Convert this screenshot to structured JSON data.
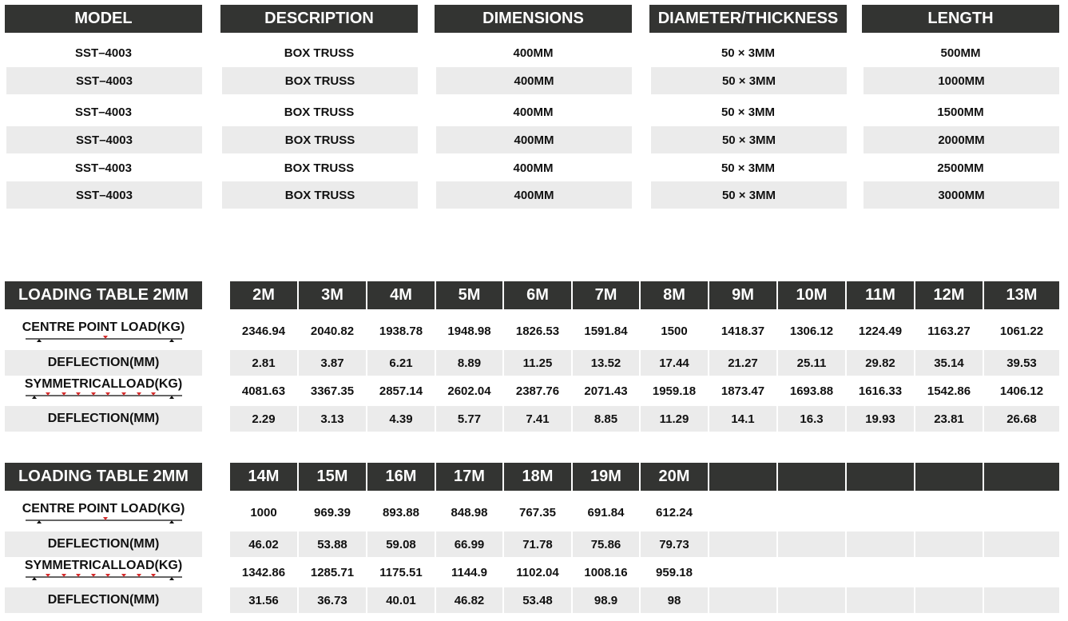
{
  "spec_table": {
    "headers": [
      "MODEL",
      "DESCRIPTION",
      "DIMENSIONS",
      "DIAMETER/THICKNESS",
      "LENGTH"
    ],
    "rows": [
      [
        "SST–4003",
        "BOX TRUSS",
        "400MM",
        "50 × 3MM",
        "500MM"
      ],
      [
        "SST–4003",
        "BOX TRUSS",
        "400MM",
        "50 × 3MM",
        "1000MM"
      ],
      [
        "SST–4003",
        "BOX TRUSS",
        "400MM",
        "50 × 3MM",
        "1500MM"
      ],
      [
        "SST–4003",
        "BOX TRUSS",
        "400MM",
        "50 × 3MM",
        "2000MM"
      ],
      [
        "SST–4003",
        "BOX TRUSS",
        "400MM",
        "50 × 3MM",
        "2500MM"
      ],
      [
        "SST–4003",
        "BOX TRUSS",
        "400MM",
        "50 × 3MM",
        "3000MM"
      ]
    ]
  },
  "loading_tables": [
    {
      "title": "LOADING TABLE 2MM",
      "spans": [
        "2M",
        "3M",
        "4M",
        "5M",
        "6M",
        "7M",
        "8M",
        "9M",
        "10M",
        "11M",
        "12M",
        "13M"
      ],
      "rows": [
        {
          "label": "CENTRE POINT LOAD(KG)",
          "icon": "centre-point-load-beam-icon",
          "values": [
            "2346.94",
            "2040.82",
            "1938.78",
            "1948.98",
            "1826.53",
            "1591.84",
            "1500",
            "1418.37",
            "1306.12",
            "1224.49",
            "1163.27",
            "1061.22"
          ]
        },
        {
          "label": "DEFLECTION(MM)",
          "values": [
            "2.81",
            "3.87",
            "6.21",
            "8.89",
            "11.25",
            "13.52",
            "17.44",
            "21.27",
            "25.11",
            "29.82",
            "35.14",
            "39.53"
          ]
        },
        {
          "label": "SYMMETRICALLOAD(KG)",
          "icon": "symmetrical-load-beam-icon",
          "values": [
            "4081.63",
            "3367.35",
            "2857.14",
            "2602.04",
            "2387.76",
            "2071.43",
            "1959.18",
            "1873.47",
            "1693.88",
            "1616.33",
            "1542.86",
            "1406.12"
          ]
        },
        {
          "label": "DEFLECTION(MM)",
          "values": [
            "2.29",
            "3.13",
            "4.39",
            "5.77",
            "7.41",
            "8.85",
            "11.29",
            "14.1",
            "16.3",
            "19.93",
            "23.81",
            "26.68"
          ]
        }
      ]
    },
    {
      "title": "LOADING TABLE 2MM",
      "spans": [
        "14M",
        "15M",
        "16M",
        "17M",
        "18M",
        "19M",
        "20M",
        "",
        "",
        "",
        "",
        ""
      ],
      "rows": [
        {
          "label": "CENTRE POINT LOAD(KG)",
          "icon": "centre-point-load-beam-icon",
          "values": [
            "1000",
            "969.39",
            "893.88",
            "848.98",
            "767.35",
            "691.84",
            "612.24",
            "",
            "",
            "",
            "",
            ""
          ]
        },
        {
          "label": "DEFLECTION(MM)",
          "values": [
            "46.02",
            "53.88",
            "59.08",
            "66.99",
            "71.78",
            "75.86",
            "79.73",
            "",
            "",
            "",
            "",
            ""
          ]
        },
        {
          "label": "SYMMETRICALLOAD(KG)",
          "icon": "symmetrical-load-beam-icon",
          "values": [
            "1342.86",
            "1285.71",
            "1175.51",
            "1144.9",
            "1102.04",
            "1008.16",
            "959.18",
            "",
            "",
            "",
            "",
            ""
          ]
        },
        {
          "label": "DEFLECTION(MM)",
          "values": [
            "31.56",
            "36.73",
            "40.01",
            "46.82",
            "53.48",
            "98.9",
            "98",
            "",
            "",
            "",
            "",
            ""
          ]
        }
      ]
    }
  ],
  "colors": {
    "header_bg": "#333432",
    "shaded_row": "#ebebeb",
    "load_arrow": "#d42b2b"
  }
}
